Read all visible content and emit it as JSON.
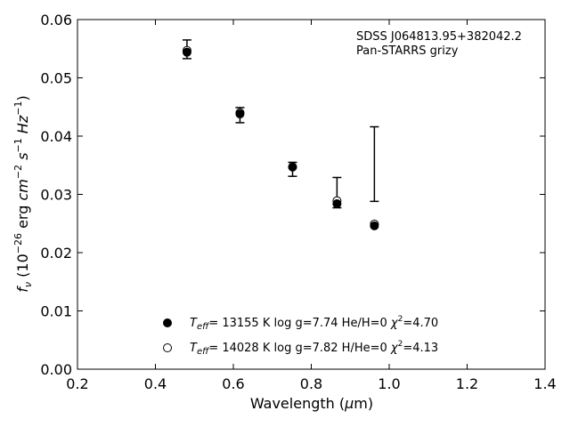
{
  "chart_data": {
    "type": "scatter",
    "xlabel": "Wavelength (μm)",
    "ylabel": "fν (10⁻²⁶ erg cm⁻² s⁻¹ Hz⁻¹)",
    "xlim": [
      0.2,
      1.4
    ],
    "ylim": [
      0.0,
      0.06
    ],
    "x_ticks": [
      "0.2",
      "0.4",
      "0.6",
      "0.8",
      "1.0",
      "1.2",
      "1.4"
    ],
    "y_ticks": [
      "0.00",
      "0.01",
      "0.02",
      "0.03",
      "0.04",
      "0.05",
      "0.06"
    ],
    "grid": false,
    "annotation": {
      "line1": "SDSS J064813.95+382042.2",
      "line2": "Pan-STARRS grizy"
    },
    "observed": {
      "x": [
        0.481,
        0.617,
        0.752,
        0.866,
        0.962
      ],
      "y": [
        0.0549,
        0.0436,
        0.0343,
        0.0303,
        0.0352
      ],
      "yerr": [
        0.0016,
        0.0013,
        0.0012,
        0.0026,
        0.0064
      ]
    },
    "series": [
      {
        "name": "Teff= 13155 K  log g=7.74  He/H=0  χ²=4.70",
        "marker": "filled-circle",
        "x": [
          0.481,
          0.617,
          0.752,
          0.866,
          0.962
        ],
        "y": [
          0.0544,
          0.0438,
          0.0347,
          0.0284,
          0.0246
        ]
      },
      {
        "name": "Teff= 14028 K  log g=7.82  H/He=0  χ²=4.13",
        "marker": "open-circle",
        "x": [
          0.481,
          0.617,
          0.752,
          0.866,
          0.962
        ],
        "y": [
          0.0547,
          0.044,
          0.0347,
          0.0289,
          0.0249
        ]
      }
    ],
    "legend": {
      "placement": "lower-center",
      "entries": [
        {
          "teff_val": "= 13155 K  log g=7.74  He/H=0  ",
          "chi_val": "=4.70"
        },
        {
          "teff_val": "= 14028 K  log g=7.82  H/He=0  ",
          "chi_val": "=4.13"
        }
      ]
    }
  }
}
